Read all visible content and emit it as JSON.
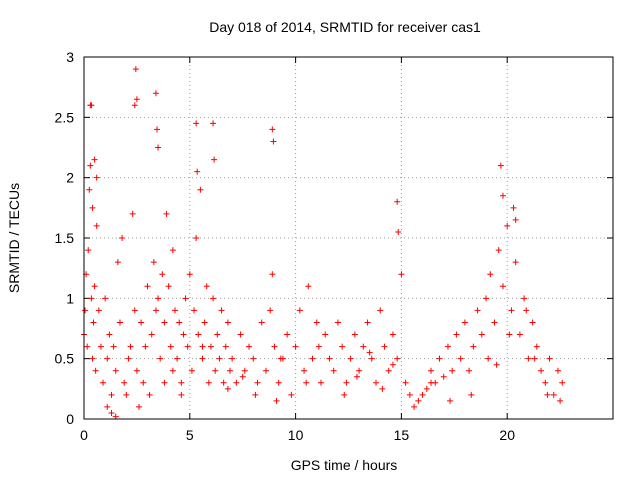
{
  "chart_data": {
    "type": "scatter",
    "title": "Day 018 of 2014, SRMTID for receiver cas1",
    "xlabel": "GPS time / hours",
    "ylabel": "SRMTID / TECUs",
    "xlim": [
      0,
      25
    ],
    "ylim": [
      0,
      3
    ],
    "xticks": [
      0,
      5,
      10,
      15,
      20
    ],
    "yticks": [
      0,
      0.5,
      1,
      1.5,
      2,
      2.5,
      3
    ],
    "xtick_labels": [
      "0",
      "5",
      "10",
      "15",
      "20"
    ],
    "ytick_labels": [
      "0",
      "0.5",
      "1",
      "1.5",
      "2",
      "2.5",
      "3"
    ],
    "grid": true,
    "marker": "+",
    "series": [
      {
        "name": "SRMTID",
        "color": "#ff0000",
        "x": [
          0.0,
          0.05,
          0.1,
          0.15,
          0.2,
          0.25,
          0.3,
          0.35,
          0.4,
          0.45,
          0.5,
          0.55,
          0.6,
          0.7,
          0.8,
          0.9,
          1.0,
          1.1,
          1.2,
          1.3,
          1.4,
          1.5,
          1.6,
          1.7,
          1.8,
          1.9,
          2.0,
          2.1,
          2.2,
          2.3,
          2.4,
          2.5,
          2.6,
          2.7,
          2.8,
          2.9,
          3.0,
          3.1,
          3.2,
          3.3,
          3.4,
          3.5,
          3.6,
          3.7,
          3.8,
          3.9,
          4.0,
          4.1,
          4.2,
          4.3,
          4.4,
          4.5,
          4.6,
          4.7,
          4.8,
          4.9,
          5.0,
          5.1,
          5.2,
          5.3,
          5.4,
          5.5,
          5.6,
          5.7,
          5.8,
          5.9,
          6.0,
          6.1,
          6.2,
          6.3,
          6.4,
          6.5,
          6.6,
          6.7,
          6.8,
          6.9,
          7.0,
          7.2,
          7.4,
          7.6,
          7.8,
          8.0,
          8.2,
          8.4,
          8.6,
          8.8,
          8.9,
          9.0,
          9.2,
          9.4,
          9.6,
          9.8,
          10.0,
          10.2,
          10.4,
          10.6,
          10.8,
          11.0,
          11.2,
          11.4,
          11.6,
          11.8,
          12.0,
          12.2,
          12.4,
          12.6,
          12.8,
          13.0,
          13.2,
          13.4,
          13.6,
          13.8,
          14.0,
          14.2,
          14.4,
          14.6,
          14.8,
          15.0,
          15.2,
          15.4,
          15.6,
          15.8,
          16.0,
          16.2,
          16.4,
          16.6,
          16.8,
          17.0,
          17.2,
          17.4,
          17.6,
          17.8,
          18.0,
          18.2,
          18.4,
          18.6,
          18.8,
          19.0,
          19.2,
          19.4,
          19.6,
          19.8,
          20.0,
          20.2,
          20.4,
          20.6,
          20.8,
          21.0,
          21.2,
          21.4,
          21.6,
          21.8,
          22.0,
          22.2,
          22.4,
          22.6,
          0.3,
          0.35,
          0.5,
          0.6,
          2.4,
          2.5,
          3.4,
          3.45,
          5.3,
          5.35,
          6.1,
          6.15,
          8.9,
          8.95,
          14.8,
          14.85,
          19.7,
          19.8,
          20.3,
          20.4,
          2.45,
          3.5,
          0.4,
          1.1,
          1.3,
          1.5,
          3.8,
          4.2,
          4.6,
          5.6,
          6.8,
          7.5,
          8.1,
          9.1,
          9.3,
          10.5,
          11.1,
          12.3,
          12.9,
          13.5,
          14.1,
          14.6,
          16.4,
          17.3,
          18.3,
          19.1,
          19.5,
          20.1,
          20.9,
          21.3,
          21.9,
          22.5
        ],
        "y": [
          0.7,
          0.9,
          1.2,
          0.6,
          1.4,
          1.9,
          2.1,
          1.0,
          0.5,
          0.8,
          1.1,
          0.4,
          1.6,
          0.9,
          0.6,
          0.3,
          1.0,
          0.5,
          0.7,
          0.2,
          0.6,
          0.4,
          1.3,
          0.8,
          1.5,
          0.3,
          0.2,
          0.5,
          0.6,
          1.7,
          0.9,
          0.4,
          0.1,
          0.8,
          0.3,
          0.6,
          1.1,
          0.2,
          0.7,
          1.3,
          0.9,
          1.0,
          0.5,
          1.2,
          0.8,
          1.7,
          1.1,
          0.6,
          1.4,
          0.9,
          0.5,
          0.8,
          0.3,
          0.7,
          1.0,
          0.6,
          1.2,
          0.4,
          0.9,
          1.5,
          0.7,
          1.9,
          0.5,
          0.8,
          1.1,
          0.3,
          0.6,
          1.0,
          0.4,
          0.7,
          0.5,
          0.9,
          0.3,
          0.6,
          0.8,
          0.4,
          0.5,
          0.3,
          0.7,
          0.4,
          0.6,
          0.5,
          0.3,
          0.8,
          0.4,
          0.9,
          1.2,
          0.6,
          0.3,
          0.5,
          0.7,
          0.2,
          0.6,
          0.9,
          0.4,
          1.1,
          0.5,
          0.8,
          0.3,
          0.7,
          0.5,
          0.4,
          0.8,
          0.6,
          0.3,
          0.5,
          0.7,
          0.4,
          0.6,
          0.8,
          0.5,
          0.3,
          0.9,
          0.6,
          0.4,
          0.7,
          0.5,
          1.2,
          0.3,
          0.2,
          0.1,
          0.15,
          0.2,
          0.25,
          0.4,
          0.3,
          0.5,
          0.35,
          0.6,
          0.4,
          0.7,
          0.5,
          0.8,
          0.4,
          0.6,
          0.9,
          0.7,
          1.0,
          1.2,
          0.8,
          1.4,
          1.1,
          1.6,
          0.9,
          1.3,
          0.7,
          1.0,
          0.5,
          0.8,
          0.6,
          0.4,
          0.3,
          0.5,
          0.2,
          0.4,
          0.3,
          2.6,
          2.6,
          2.15,
          2.0,
          2.6,
          2.65,
          2.7,
          2.4,
          2.45,
          2.05,
          2.45,
          2.15,
          2.4,
          2.3,
          1.8,
          1.55,
          2.1,
          1.85,
          1.75,
          1.65,
          2.9,
          2.25,
          1.75,
          0.1,
          0.05,
          0.02,
          0.3,
          0.4,
          0.2,
          0.6,
          0.25,
          0.35,
          0.2,
          0.15,
          0.5,
          0.3,
          0.6,
          0.2,
          0.35,
          0.55,
          0.25,
          0.45,
          0.3,
          0.15,
          0.2,
          0.5,
          0.45,
          0.7,
          0.9,
          0.5,
          0.2,
          0.15
        ]
      }
    ]
  }
}
